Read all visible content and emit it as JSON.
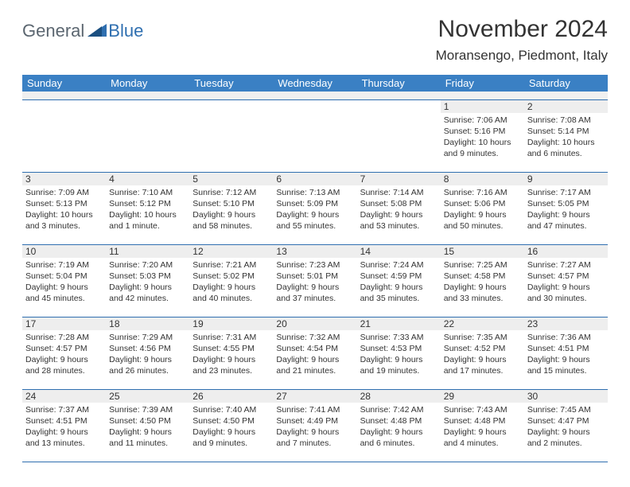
{
  "logo": {
    "general": "General",
    "blue": "Blue"
  },
  "header": {
    "title": "November 2024",
    "location": "Moransengo, Piedmont, Italy"
  },
  "theme": {
    "header_bg": "#3a80c4",
    "header_text": "#ffffff",
    "border_color": "#2f6fb0",
    "daynum_bg": "#eeeeee",
    "spacer_bg": "#f0f0f0",
    "text_color": "#333333",
    "logo_gray": "#5b6670",
    "logo_blue": "#2f6fb0"
  },
  "day_headers": [
    "Sunday",
    "Monday",
    "Tuesday",
    "Wednesday",
    "Thursday",
    "Friday",
    "Saturday"
  ],
  "weeks": [
    [
      null,
      null,
      null,
      null,
      null,
      {
        "n": "1",
        "sr": "Sunrise: 7:06 AM",
        "ss": "Sunset: 5:16 PM",
        "dl": "Daylight: 10 hours and 9 minutes."
      },
      {
        "n": "2",
        "sr": "Sunrise: 7:08 AM",
        "ss": "Sunset: 5:14 PM",
        "dl": "Daylight: 10 hours and 6 minutes."
      }
    ],
    [
      {
        "n": "3",
        "sr": "Sunrise: 7:09 AM",
        "ss": "Sunset: 5:13 PM",
        "dl": "Daylight: 10 hours and 3 minutes."
      },
      {
        "n": "4",
        "sr": "Sunrise: 7:10 AM",
        "ss": "Sunset: 5:12 PM",
        "dl": "Daylight: 10 hours and 1 minute."
      },
      {
        "n": "5",
        "sr": "Sunrise: 7:12 AM",
        "ss": "Sunset: 5:10 PM",
        "dl": "Daylight: 9 hours and 58 minutes."
      },
      {
        "n": "6",
        "sr": "Sunrise: 7:13 AM",
        "ss": "Sunset: 5:09 PM",
        "dl": "Daylight: 9 hours and 55 minutes."
      },
      {
        "n": "7",
        "sr": "Sunrise: 7:14 AM",
        "ss": "Sunset: 5:08 PM",
        "dl": "Daylight: 9 hours and 53 minutes."
      },
      {
        "n": "8",
        "sr": "Sunrise: 7:16 AM",
        "ss": "Sunset: 5:06 PM",
        "dl": "Daylight: 9 hours and 50 minutes."
      },
      {
        "n": "9",
        "sr": "Sunrise: 7:17 AM",
        "ss": "Sunset: 5:05 PM",
        "dl": "Daylight: 9 hours and 47 minutes."
      }
    ],
    [
      {
        "n": "10",
        "sr": "Sunrise: 7:19 AM",
        "ss": "Sunset: 5:04 PM",
        "dl": "Daylight: 9 hours and 45 minutes."
      },
      {
        "n": "11",
        "sr": "Sunrise: 7:20 AM",
        "ss": "Sunset: 5:03 PM",
        "dl": "Daylight: 9 hours and 42 minutes."
      },
      {
        "n": "12",
        "sr": "Sunrise: 7:21 AM",
        "ss": "Sunset: 5:02 PM",
        "dl": "Daylight: 9 hours and 40 minutes."
      },
      {
        "n": "13",
        "sr": "Sunrise: 7:23 AM",
        "ss": "Sunset: 5:01 PM",
        "dl": "Daylight: 9 hours and 37 minutes."
      },
      {
        "n": "14",
        "sr": "Sunrise: 7:24 AM",
        "ss": "Sunset: 4:59 PM",
        "dl": "Daylight: 9 hours and 35 minutes."
      },
      {
        "n": "15",
        "sr": "Sunrise: 7:25 AM",
        "ss": "Sunset: 4:58 PM",
        "dl": "Daylight: 9 hours and 33 minutes."
      },
      {
        "n": "16",
        "sr": "Sunrise: 7:27 AM",
        "ss": "Sunset: 4:57 PM",
        "dl": "Daylight: 9 hours and 30 minutes."
      }
    ],
    [
      {
        "n": "17",
        "sr": "Sunrise: 7:28 AM",
        "ss": "Sunset: 4:57 PM",
        "dl": "Daylight: 9 hours and 28 minutes."
      },
      {
        "n": "18",
        "sr": "Sunrise: 7:29 AM",
        "ss": "Sunset: 4:56 PM",
        "dl": "Daylight: 9 hours and 26 minutes."
      },
      {
        "n": "19",
        "sr": "Sunrise: 7:31 AM",
        "ss": "Sunset: 4:55 PM",
        "dl": "Daylight: 9 hours and 23 minutes."
      },
      {
        "n": "20",
        "sr": "Sunrise: 7:32 AM",
        "ss": "Sunset: 4:54 PM",
        "dl": "Daylight: 9 hours and 21 minutes."
      },
      {
        "n": "21",
        "sr": "Sunrise: 7:33 AM",
        "ss": "Sunset: 4:53 PM",
        "dl": "Daylight: 9 hours and 19 minutes."
      },
      {
        "n": "22",
        "sr": "Sunrise: 7:35 AM",
        "ss": "Sunset: 4:52 PM",
        "dl": "Daylight: 9 hours and 17 minutes."
      },
      {
        "n": "23",
        "sr": "Sunrise: 7:36 AM",
        "ss": "Sunset: 4:51 PM",
        "dl": "Daylight: 9 hours and 15 minutes."
      }
    ],
    [
      {
        "n": "24",
        "sr": "Sunrise: 7:37 AM",
        "ss": "Sunset: 4:51 PM",
        "dl": "Daylight: 9 hours and 13 minutes."
      },
      {
        "n": "25",
        "sr": "Sunrise: 7:39 AM",
        "ss": "Sunset: 4:50 PM",
        "dl": "Daylight: 9 hours and 11 minutes."
      },
      {
        "n": "26",
        "sr": "Sunrise: 7:40 AM",
        "ss": "Sunset: 4:50 PM",
        "dl": "Daylight: 9 hours and 9 minutes."
      },
      {
        "n": "27",
        "sr": "Sunrise: 7:41 AM",
        "ss": "Sunset: 4:49 PM",
        "dl": "Daylight: 9 hours and 7 minutes."
      },
      {
        "n": "28",
        "sr": "Sunrise: 7:42 AM",
        "ss": "Sunset: 4:48 PM",
        "dl": "Daylight: 9 hours and 6 minutes."
      },
      {
        "n": "29",
        "sr": "Sunrise: 7:43 AM",
        "ss": "Sunset: 4:48 PM",
        "dl": "Daylight: 9 hours and 4 minutes."
      },
      {
        "n": "30",
        "sr": "Sunrise: 7:45 AM",
        "ss": "Sunset: 4:47 PM",
        "dl": "Daylight: 9 hours and 2 minutes."
      }
    ]
  ]
}
